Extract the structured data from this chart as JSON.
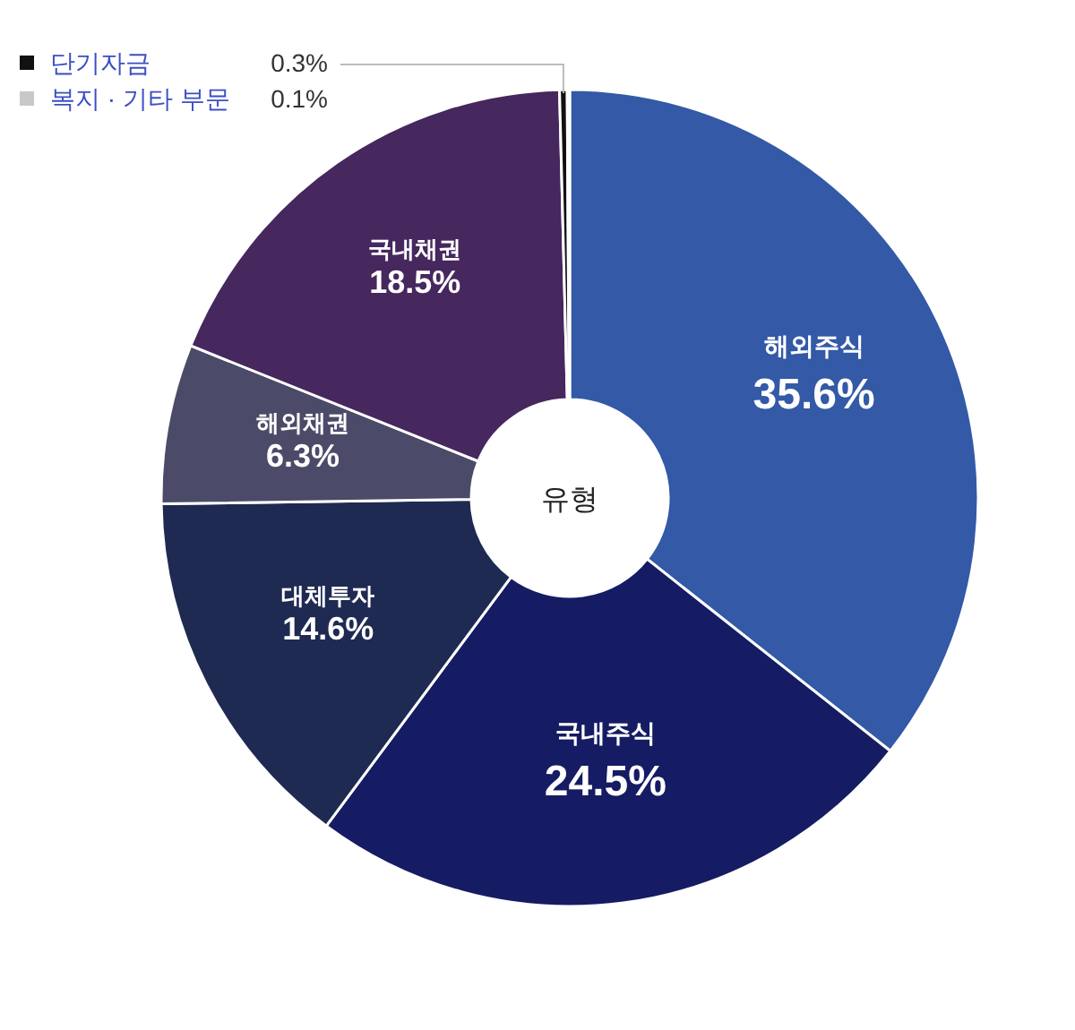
{
  "chart_data": {
    "type": "donut",
    "categories": [
      "해외주식",
      "국내주식",
      "대체투자",
      "해외채권",
      "국내채권",
      "단기자금",
      "복지 · 기타 부문"
    ],
    "values": [
      35.6,
      24.5,
      14.6,
      6.3,
      18.5,
      0.3,
      0.1
    ],
    "colors": [
      "#3359a7",
      "#151c63",
      "#1f2a52",
      "#4b4b69",
      "#46275e",
      "#111111",
      "#c8c8c8"
    ],
    "annotations": [
      "유형"
    ],
    "value_labels": [
      "35.6%",
      "24.5%",
      "14.6%",
      "6.3%",
      "18.5%",
      "0.3%",
      "0.1%"
    ],
    "legend": "top left"
  }
}
